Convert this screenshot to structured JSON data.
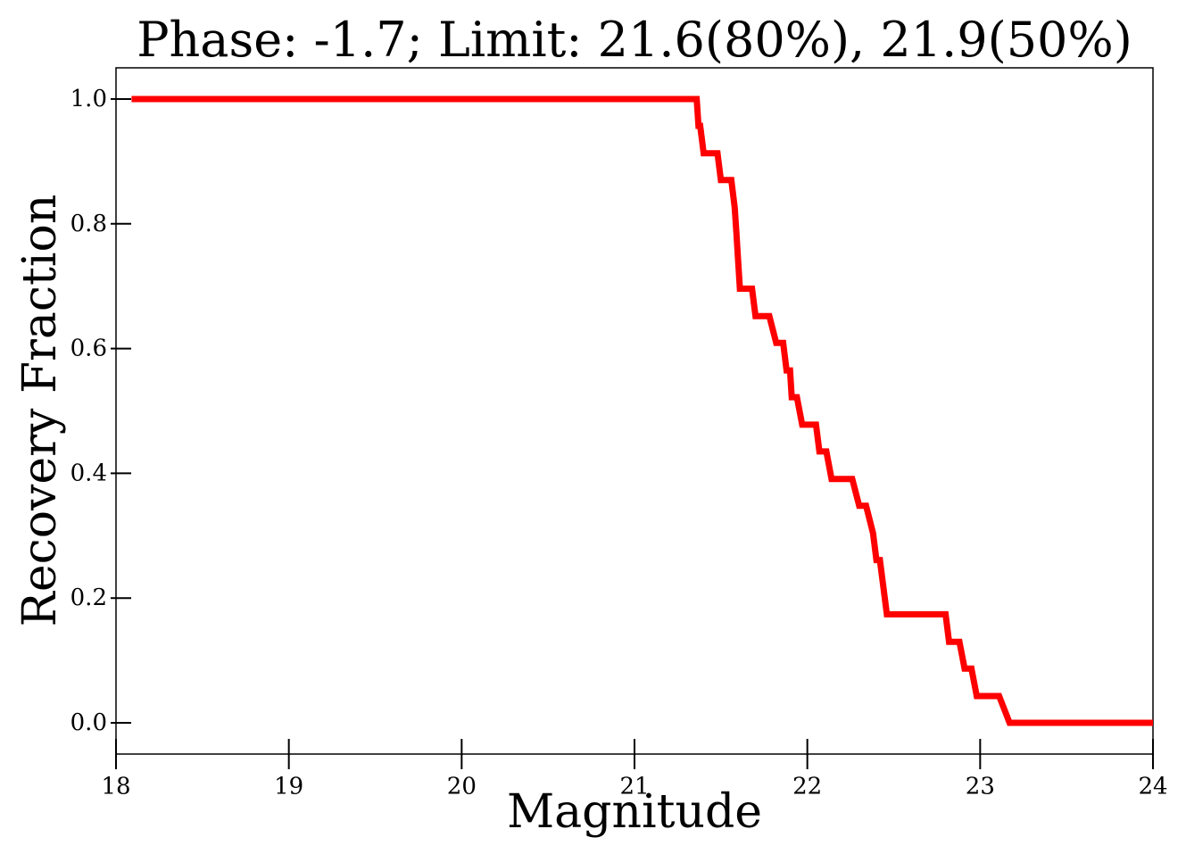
{
  "chart_data": {
    "type": "line",
    "title": "Phase: -1.7; Limit: 21.6(80%), 21.9(50%)",
    "xlabel": "Magnitude",
    "ylabel": "Recovery Fraction",
    "xlim": [
      18,
      24
    ],
    "ylim": [
      -0.05,
      1.05
    ],
    "x_ticks": [
      18,
      19,
      20,
      21,
      22,
      23,
      24
    ],
    "y_ticks": [
      0.0,
      0.2,
      0.4,
      0.6,
      0.8,
      1.0
    ],
    "x_tick_labels": [
      "18",
      "19",
      "20",
      "21",
      "22",
      "23",
      "24"
    ],
    "y_tick_labels": [
      "0.0",
      "0.2",
      "0.4",
      "0.6",
      "0.8",
      "1.0"
    ],
    "grid": false,
    "series": [
      {
        "color": "#ff0000",
        "x": [
          18.09,
          21.36,
          21.37,
          21.38,
          21.4,
          21.48,
          21.5,
          21.56,
          21.58,
          21.59,
          21.6,
          21.61,
          21.68,
          21.7,
          21.78,
          21.82,
          21.86,
          21.88,
          21.9,
          21.91,
          21.94,
          21.97,
          22.05,
          22.07,
          22.11,
          22.14,
          22.26,
          22.3,
          22.34,
          22.38,
          22.4,
          22.42,
          22.46,
          22.8,
          22.82,
          22.88,
          22.91,
          22.95,
          22.98,
          23.11,
          23.17,
          24.0
        ],
        "y": [
          1.0,
          1.0,
          0.957,
          0.957,
          0.913,
          0.913,
          0.87,
          0.87,
          0.826,
          0.783,
          0.739,
          0.696,
          0.696,
          0.652,
          0.652,
          0.609,
          0.609,
          0.565,
          0.565,
          0.522,
          0.522,
          0.478,
          0.478,
          0.435,
          0.435,
          0.391,
          0.391,
          0.348,
          0.348,
          0.304,
          0.261,
          0.261,
          0.174,
          0.174,
          0.13,
          0.13,
          0.087,
          0.087,
          0.043,
          0.043,
          0.0,
          0.0
        ]
      }
    ]
  }
}
